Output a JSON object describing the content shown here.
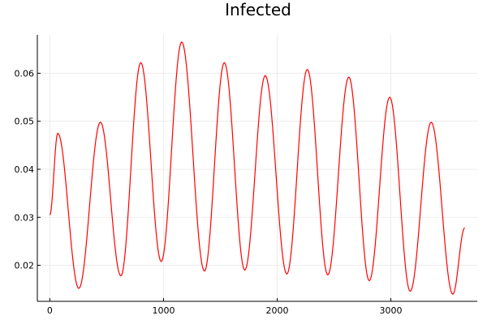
{
  "chart_data": {
    "type": "line",
    "title": "Infected",
    "xlabel": "",
    "ylabel": "",
    "xlim": [
      -110,
      3760
    ],
    "ylim": [
      0.0125,
      0.068
    ],
    "xticks": [
      0,
      1000,
      2000,
      3000
    ],
    "xtick_labels": [
      "0",
      "1000",
      "2000",
      "3000"
    ],
    "yticks": [
      0.02,
      0.03,
      0.04,
      0.05,
      0.06
    ],
    "ytick_labels": [
      "0.02",
      "0.03",
      "0.04",
      "0.05",
      "0.06"
    ],
    "grid": true,
    "legend": "none",
    "series": [
      {
        "color": "#ff0000",
        "x": [
          0,
          70,
          255,
          445,
          625,
          800,
          980,
          1160,
          1360,
          1535,
          1715,
          1895,
          2085,
          2265,
          2445,
          2630,
          2810,
          2990,
          3170,
          3355,
          3545,
          3650
        ],
        "y": [
          0.0305,
          0.0475,
          0.0152,
          0.0498,
          0.0178,
          0.0622,
          0.0208,
          0.0665,
          0.0188,
          0.0622,
          0.019,
          0.0595,
          0.0182,
          0.0608,
          0.018,
          0.0592,
          0.0168,
          0.055,
          0.0146,
          0.0498,
          0.014,
          0.0278
        ]
      }
    ]
  }
}
